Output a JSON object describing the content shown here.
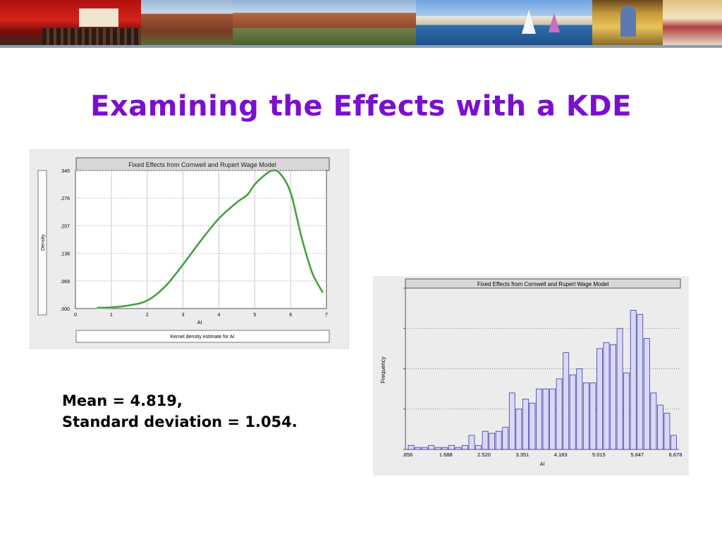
{
  "slide": {
    "title": "Examining the Effects with a KDE",
    "stats_line1": "Mean = 4.819,",
    "stats_line2": "Standard deviation = 1.054.",
    "title_color": "#7a0fcf"
  },
  "banner": {
    "panels": [
      "auditorium-photo",
      "college-building-photo",
      "campus-lake-photo",
      "chapel-interior-photo",
      "dining-hall-photo"
    ]
  },
  "chart_data": [
    {
      "type": "line",
      "title": "Fixed Effects from Cornwell and Rupert Wage Model",
      "xlabel": "AI",
      "ylabel": "Density",
      "caption": "Kernel density estimate for    AI",
      "xlim": [
        0,
        7
      ],
      "ylim": [
        0,
        0.345
      ],
      "xticks": [
        "0",
        "1",
        "2",
        "3",
        "4",
        "5",
        "6",
        "7"
      ],
      "yticks": [
        ".000",
        ".069",
        ".138",
        ".207",
        ".276",
        ".345"
      ],
      "grid": true,
      "line_color": "#2e8b2e",
      "series": [
        {
          "x": [
            0.6,
            1.0,
            1.5,
            2.0,
            2.5,
            3.0,
            3.5,
            4.0,
            4.5,
            4.8,
            5.0,
            5.3,
            5.5,
            5.7,
            6.0,
            6.3,
            6.6,
            6.9
          ],
          "values": [
            0.002,
            0.003,
            0.008,
            0.02,
            0.055,
            0.11,
            0.17,
            0.225,
            0.265,
            0.285,
            0.31,
            0.335,
            0.345,
            0.338,
            0.29,
            0.18,
            0.09,
            0.04
          ]
        }
      ]
    },
    {
      "type": "bar",
      "title": "Fixed Effects from  Cornwell and Rupert Wage Model",
      "xlabel": "AI",
      "ylabel": "Frequency",
      "xticks": [
        ".856",
        "1.688",
        "2.520",
        "3.351",
        "4.183",
        "5.015",
        "5.847",
        "6.678"
      ],
      "xlim": [
        0.856,
        6.678
      ],
      "grid": true,
      "bar_color": "#d9d9f7",
      "bar_edge": "#3a3aa0",
      "values": [
        2,
        1,
        1,
        2,
        1,
        1,
        2,
        1,
        2,
        7,
        2,
        9,
        8,
        9,
        11,
        28,
        20,
        25,
        23,
        30,
        30,
        30,
        35,
        48,
        37,
        40,
        33,
        33,
        50,
        53,
        52,
        60,
        38,
        69,
        67,
        55,
        28,
        22,
        18,
        7
      ]
    }
  ]
}
